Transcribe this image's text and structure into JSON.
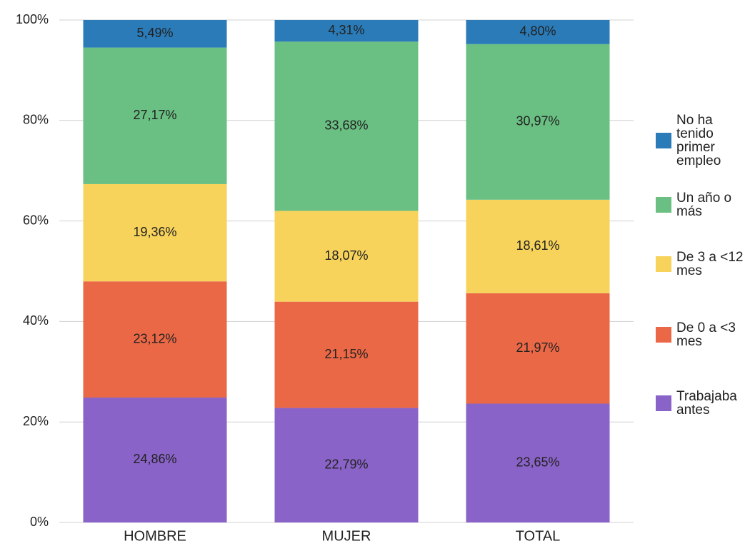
{
  "chart_data": {
    "type": "stacked_bar",
    "categories": [
      "HOMBRE",
      "MUJER",
      "TOTAL"
    ],
    "series": [
      {
        "name": "Trabajaba antes",
        "color": "#8a63c8",
        "values": [
          24.86,
          22.79,
          23.65
        ],
        "value_labels": [
          "24,86%",
          "22,79%",
          "23,65%"
        ]
      },
      {
        "name": "De 0 a <3 mes",
        "color": "#eb6846",
        "values": [
          23.12,
          21.15,
          21.97
        ],
        "value_labels": [
          "23,12%",
          "21,15%",
          "21,97%"
        ]
      },
      {
        "name": "De 3 a <12 mes",
        "color": "#f7d35c",
        "values": [
          19.36,
          18.07,
          18.61
        ],
        "value_labels": [
          "19,36%",
          "18,07%",
          "18,61%"
        ]
      },
      {
        "name": "Un año o más",
        "color": "#6abf82",
        "values": [
          27.17,
          33.68,
          30.97
        ],
        "value_labels": [
          "27,17%",
          "33,68%",
          "30,97%"
        ]
      },
      {
        "name": "No ha tenido primer empleo",
        "color": "#2a7bb8",
        "values": [
          5.49,
          4.31,
          4.8
        ],
        "value_labels": [
          "5,49%",
          "4,31%",
          "4,80%"
        ]
      }
    ],
    "ylim": [
      0,
      100
    ],
    "yticks": [
      {
        "value": 0,
        "label": "0%"
      },
      {
        "value": 20,
        "label": "20%"
      },
      {
        "value": 40,
        "label": "40%"
      },
      {
        "value": 60,
        "label": "60%"
      },
      {
        "value": 80,
        "label": "80%"
      },
      {
        "value": 100,
        "label": "100%"
      }
    ],
    "grid": true,
    "legend": "right"
  }
}
